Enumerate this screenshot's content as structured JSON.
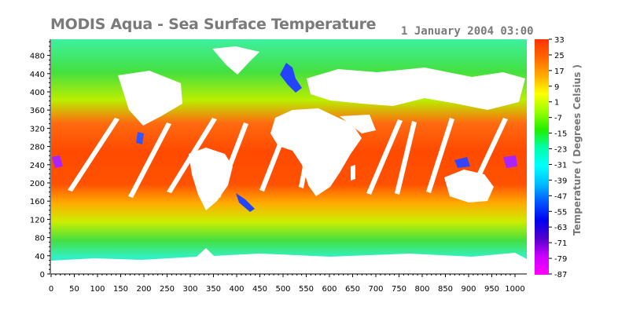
{
  "header": {
    "title": "MODIS Aqua - Sea Surface Temperature",
    "timestamp": "1 January 2004 03:00"
  },
  "map": {
    "x_ticks": [
      "0",
      "50",
      "100",
      "150",
      "200",
      "250",
      "300",
      "350",
      "400",
      "450",
      "500",
      "550",
      "600",
      "650",
      "700",
      "750",
      "800",
      "850",
      "900",
      "950",
      "1000"
    ],
    "y_ticks": [
      "0",
      "40",
      "80",
      "120",
      "160",
      "200",
      "240",
      "280",
      "320",
      "360",
      "400",
      "440",
      "480"
    ]
  },
  "colorbar": {
    "labels": [
      "33",
      "25",
      "17",
      "9",
      "1",
      "-7",
      "-15",
      "-23",
      "-31",
      "-39",
      "-47",
      "-55",
      "-63",
      "-71",
      "-79",
      "-87"
    ],
    "colors_top_to_bottom": [
      "#ff3300",
      "#ff6600",
      "#ffaa00",
      "#ffff00",
      "#99ff00",
      "#22ee00",
      "#00ffaa",
      "#00ffff",
      "#00bbff",
      "#0055ff",
      "#0000ee",
      "#5500cc",
      "#cc00ff",
      "#ff00ff"
    ],
    "title": "Temperature ( Degrees Celsius )"
  }
}
